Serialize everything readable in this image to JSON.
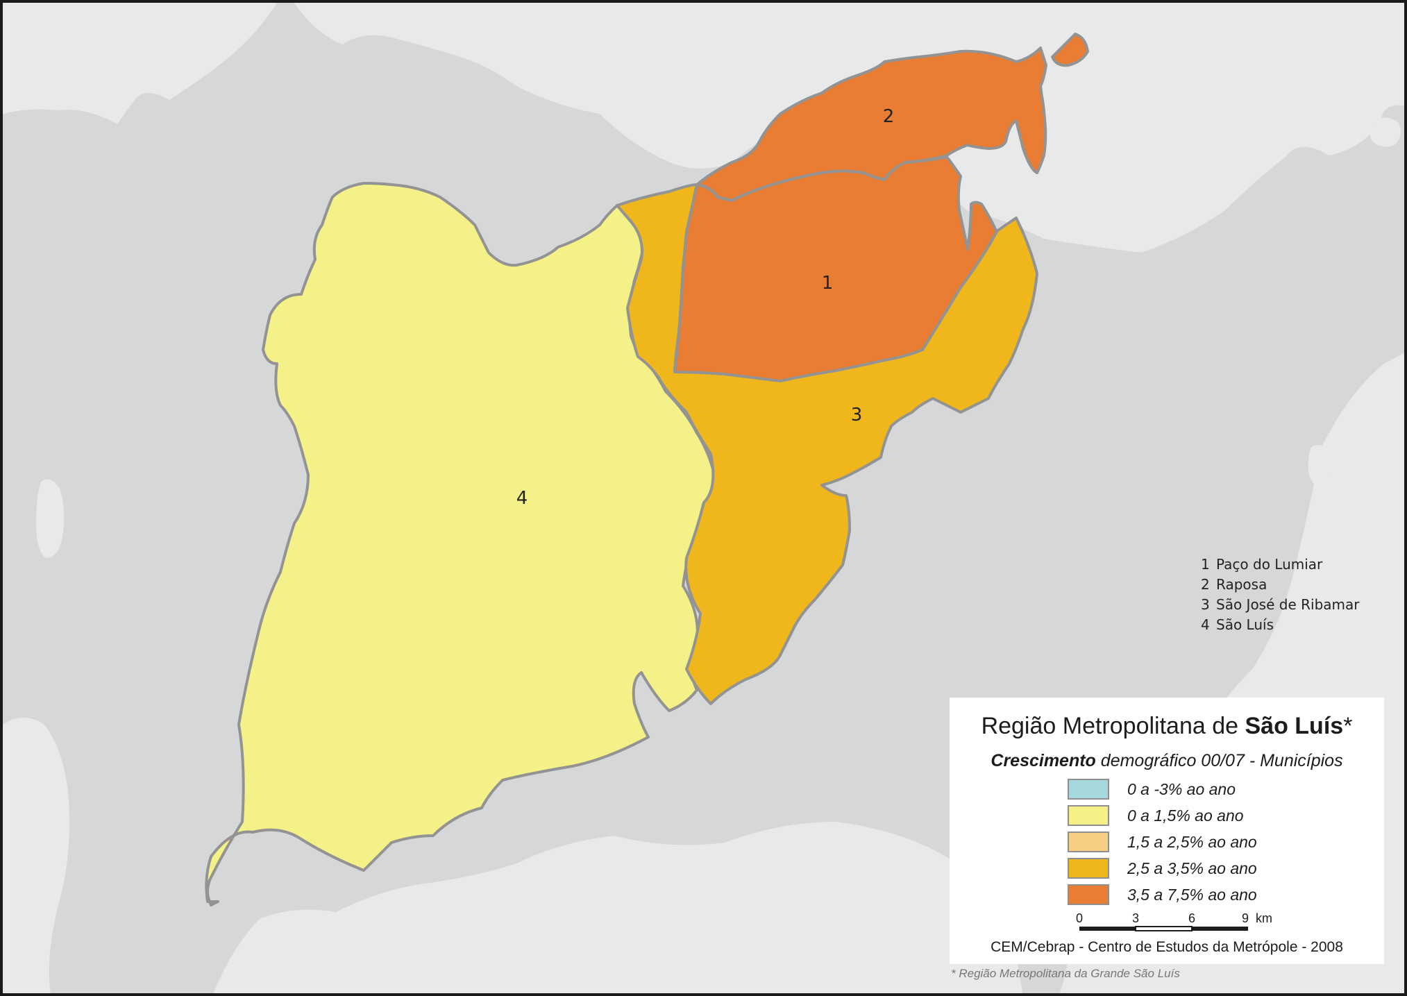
{
  "municipalities": [
    {
      "number": "1",
      "name": "Paço do Lumiar",
      "class": "3,5 a 7,5% ao ano",
      "color": "#e87d33"
    },
    {
      "number": "2",
      "name": "Raposa",
      "class": "3,5 a 7,5% ao ano",
      "color": "#e87d33"
    },
    {
      "number": "3",
      "name": "São José de Ribamar",
      "class": "2,5 a 3,5% ao ano",
      "color": "#efb71c"
    },
    {
      "number": "4",
      "name": "São Luís",
      "class": "0 a 1,5% ao ano",
      "color": "#f4f188"
    }
  ],
  "legend": {
    "title_regular": "Região Metropolitana de ",
    "title_bold": "São Luís",
    "title_suffix": "*",
    "subtitle_bold": "Crescimento",
    "subtitle_rest": " demográfico 00/07 - Municípios",
    "classes": [
      {
        "label": "0 a -3% ao ano",
        "color": "#a6d8dc"
      },
      {
        "label": "0 a 1,5% ao ano",
        "color": "#f4f188"
      },
      {
        "label": "1,5 a 2,5% ao ano",
        "color": "#f7cf84"
      },
      {
        "label": "2,5 a 3,5% ao ano",
        "color": "#efb71c"
      },
      {
        "label": "3,5 a 7,5% ao ano",
        "color": "#e87d33"
      }
    ]
  },
  "scale": {
    "ticks": [
      "0",
      "3",
      "6",
      "9"
    ],
    "unit": "km"
  },
  "credits": "CEM/Cebrap - Centro de Estudos da Metrópole - 2008",
  "footnote": "* Região Metropolitana da Grande São Luís",
  "colors": {
    "water": "#d5d7d9",
    "land": "#e8e9eb",
    "boundary": "#939393"
  }
}
